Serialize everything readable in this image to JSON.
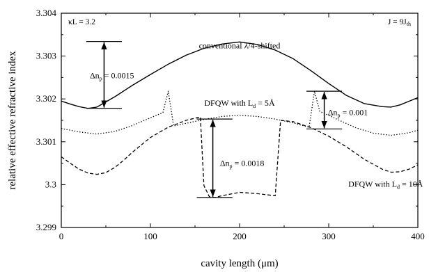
{
  "chart_data": {
    "type": "line",
    "xlabel": "cavity length (μm)",
    "ylabel": "relative effective refractive index",
    "xlim": [
      0,
      400
    ],
    "ylim": [
      3.299,
      3.304
    ],
    "x_ticks": [
      0,
      100,
      200,
      300,
      400
    ],
    "x_tick_labels": [
      "0",
      "100",
      "200",
      "300",
      "400"
    ],
    "y_ticks": [
      3.299,
      3.3,
      3.301,
      3.302,
      3.303,
      3.304
    ],
    "y_tick_labels": [
      "3.299",
      "3.3",
      "3.301",
      "3.302",
      "3.303",
      "3.304"
    ],
    "grid": false,
    "corner_left": {
      "main": "κL = 3.2"
    },
    "corner_right": {
      "main": "J = 9J",
      "sub": "th"
    },
    "series": [
      {
        "name": "conventional λ/4-shifted",
        "style": "solid",
        "points": [
          [
            0,
            3.30195
          ],
          [
            10,
            3.30188
          ],
          [
            20,
            3.30182
          ],
          [
            30,
            3.30178
          ],
          [
            40,
            3.30181
          ],
          [
            60,
            3.30205
          ],
          [
            80,
            3.30232
          ],
          [
            100,
            3.30257
          ],
          [
            120,
            3.30281
          ],
          [
            140,
            3.30302
          ],
          [
            160,
            3.30318
          ],
          [
            180,
            3.30328
          ],
          [
            200,
            3.30333
          ],
          [
            220,
            3.30327
          ],
          [
            240,
            3.30314
          ],
          [
            260,
            3.30294
          ],
          [
            280,
            3.30266
          ],
          [
            300,
            3.30236
          ],
          [
            320,
            3.30208
          ],
          [
            340,
            3.30189
          ],
          [
            360,
            3.30182
          ],
          [
            370,
            3.30181
          ],
          [
            380,
            3.30186
          ],
          [
            400,
            3.30203
          ]
        ]
      },
      {
        "name": "DFQW with L = 5Å",
        "style": "dotted",
        "points": [
          [
            0,
            3.30131
          ],
          [
            20,
            3.30123
          ],
          [
            40,
            3.30118
          ],
          [
            60,
            3.30124
          ],
          [
            80,
            3.30138
          ],
          [
            100,
            3.30156
          ],
          [
            114,
            3.30168
          ],
          [
            120,
            3.30218
          ],
          [
            126,
            3.30137
          ],
          [
            140,
            3.30143
          ],
          [
            160,
            3.30152
          ],
          [
            180,
            3.30159
          ],
          [
            200,
            3.30162
          ],
          [
            220,
            3.30159
          ],
          [
            240,
            3.30153
          ],
          [
            260,
            3.30144
          ],
          [
            278,
            3.30134
          ],
          [
            284,
            3.30218
          ],
          [
            290,
            3.30171
          ],
          [
            310,
            3.30152
          ],
          [
            330,
            3.30133
          ],
          [
            350,
            3.3012
          ],
          [
            370,
            3.30115
          ],
          [
            390,
            3.30121
          ],
          [
            400,
            3.30127
          ]
        ]
      },
      {
        "name": "DFQW with L = 10Å",
        "style": "dashed",
        "points": [
          [
            0,
            3.30065
          ],
          [
            10,
            3.3005
          ],
          [
            20,
            3.30036
          ],
          [
            30,
            3.30027
          ],
          [
            40,
            3.30024
          ],
          [
            50,
            3.30028
          ],
          [
            60,
            3.3004
          ],
          [
            70,
            3.30057
          ],
          [
            80,
            3.30076
          ],
          [
            100,
            3.3011
          ],
          [
            120,
            3.30134
          ],
          [
            140,
            3.3015
          ],
          [
            156,
            3.30158
          ],
          [
            160,
            3.29998
          ],
          [
            166,
            3.29972
          ],
          [
            172,
            3.2997
          ],
          [
            180,
            3.29974
          ],
          [
            200,
            3.29982
          ],
          [
            220,
            3.29979
          ],
          [
            240,
            3.29974
          ],
          [
            246,
            3.3015
          ],
          [
            260,
            3.30147
          ],
          [
            280,
            3.30133
          ],
          [
            300,
            3.30113
          ],
          [
            320,
            3.30088
          ],
          [
            340,
            3.30059
          ],
          [
            360,
            3.30036
          ],
          [
            370,
            3.30029
          ],
          [
            380,
            3.3003
          ],
          [
            390,
            3.30036
          ],
          [
            400,
            3.30046
          ]
        ]
      }
    ],
    "annotations": [
      {
        "text": "Δn",
        "sub": "p",
        "rest": " = 0.0015",
        "x1": 28,
        "x2": 68,
        "y_top": 3.30334,
        "y_bot": 3.30178,
        "arrow_x": 48,
        "label_x": 32,
        "label_y": 3.30255
      },
      {
        "text": "Δn",
        "sub": "p",
        "rest": " = 0.0018",
        "x1": 152,
        "x2": 192,
        "y_top": 3.30153,
        "y_bot": 3.2997,
        "arrow_x": 170,
        "label_x": 178,
        "label_y": 3.3005
      },
      {
        "text": "Δn",
        "sub": "p",
        "rest": " = 0.001",
        "x1": 275,
        "x2": 315,
        "y_top": 3.30218,
        "y_bot": 3.3013,
        "arrow_x": 295,
        "label_x": 299,
        "label_y": 3.30169
      }
    ],
    "curve_labels": [
      {
        "series": 0,
        "parts": [
          "conventional λ/4-shifted"
        ],
        "x": 200,
        "y": 3.30318
      },
      {
        "series": 1,
        "parts": [
          "DFQW with L",
          "d",
          " = 5",
          "Å"
        ],
        "x": 200,
        "y": 3.30184
      },
      {
        "series": 2,
        "parts": [
          "DFQW with L",
          "d",
          " = 10",
          "Å"
        ],
        "x": 322,
        "y": 3.29995
      }
    ]
  }
}
